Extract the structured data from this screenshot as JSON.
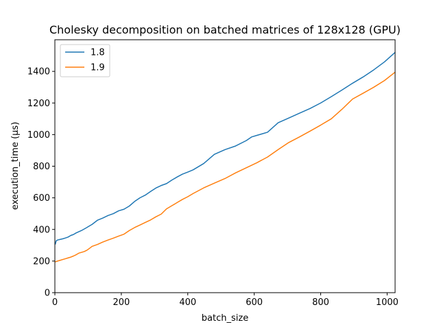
{
  "chart_data": {
    "type": "line",
    "title": "Cholesky decomposition on batched matrices of 128x128 (GPU)",
    "xlabel": "batch_size",
    "ylabel": "execution_time (µs)",
    "xlim": [
      0,
      1024
    ],
    "ylim": [
      0,
      1600
    ],
    "xticks": [
      0,
      200,
      400,
      600,
      800,
      1000
    ],
    "yticks": [
      0,
      200,
      400,
      600,
      800,
      1000,
      1200,
      1400
    ],
    "grid": false,
    "legend_position": "top-left",
    "series": [
      {
        "name": "1.8",
        "color": "#1f77b4",
        "points": [
          [
            1,
            305
          ],
          [
            4,
            328
          ],
          [
            8,
            333
          ],
          [
            16,
            337
          ],
          [
            24,
            341
          ],
          [
            32,
            346
          ],
          [
            40,
            352
          ],
          [
            48,
            362
          ],
          [
            56,
            368
          ],
          [
            64,
            378
          ],
          [
            80,
            393
          ],
          [
            96,
            412
          ],
          [
            112,
            432
          ],
          [
            128,
            458
          ],
          [
            144,
            472
          ],
          [
            160,
            488
          ],
          [
            176,
            500
          ],
          [
            192,
            518
          ],
          [
            208,
            528
          ],
          [
            224,
            548
          ],
          [
            240,
            577
          ],
          [
            256,
            600
          ],
          [
            272,
            617
          ],
          [
            288,
            640
          ],
          [
            304,
            662
          ],
          [
            320,
            678
          ],
          [
            336,
            690
          ],
          [
            352,
            712
          ],
          [
            368,
            732
          ],
          [
            384,
            750
          ],
          [
            400,
            763
          ],
          [
            416,
            777
          ],
          [
            448,
            817
          ],
          [
            480,
            875
          ],
          [
            512,
            905
          ],
          [
            544,
            928
          ],
          [
            576,
            962
          ],
          [
            592,
            985
          ],
          [
            608,
            995
          ],
          [
            624,
            1005
          ],
          [
            640,
            1015
          ],
          [
            672,
            1075
          ],
          [
            704,
            1105
          ],
          [
            736,
            1135
          ],
          [
            768,
            1165
          ],
          [
            800,
            1200
          ],
          [
            832,
            1240
          ],
          [
            864,
            1282
          ],
          [
            896,
            1325
          ],
          [
            928,
            1365
          ],
          [
            960,
            1410
          ],
          [
            992,
            1460
          ],
          [
            1024,
            1520
          ]
        ]
      },
      {
        "name": "1.9",
        "color": "#ff7f0e",
        "points": [
          [
            1,
            195
          ],
          [
            8,
            200
          ],
          [
            16,
            205
          ],
          [
            24,
            210
          ],
          [
            32,
            215
          ],
          [
            40,
            220
          ],
          [
            48,
            225
          ],
          [
            56,
            232
          ],
          [
            64,
            240
          ],
          [
            72,
            250
          ],
          [
            80,
            255
          ],
          [
            88,
            260
          ],
          [
            96,
            268
          ],
          [
            104,
            280
          ],
          [
            112,
            293
          ],
          [
            128,
            305
          ],
          [
            144,
            320
          ],
          [
            160,
            333
          ],
          [
            176,
            345
          ],
          [
            192,
            358
          ],
          [
            208,
            370
          ],
          [
            224,
            393
          ],
          [
            240,
            412
          ],
          [
            256,
            428
          ],
          [
            272,
            444
          ],
          [
            288,
            460
          ],
          [
            304,
            480
          ],
          [
            320,
            497
          ],
          [
            336,
            530
          ],
          [
            352,
            550
          ],
          [
            368,
            570
          ],
          [
            384,
            590
          ],
          [
            400,
            607
          ],
          [
            416,
            627
          ],
          [
            448,
            663
          ],
          [
            480,
            693
          ],
          [
            512,
            722
          ],
          [
            544,
            758
          ],
          [
            576,
            790
          ],
          [
            608,
            822
          ],
          [
            640,
            858
          ],
          [
            672,
            905
          ],
          [
            704,
            950
          ],
          [
            736,
            985
          ],
          [
            768,
            1022
          ],
          [
            800,
            1060
          ],
          [
            832,
            1100
          ],
          [
            864,
            1160
          ],
          [
            896,
            1225
          ],
          [
            928,
            1262
          ],
          [
            960,
            1300
          ],
          [
            992,
            1342
          ],
          [
            1024,
            1395
          ]
        ]
      }
    ]
  }
}
